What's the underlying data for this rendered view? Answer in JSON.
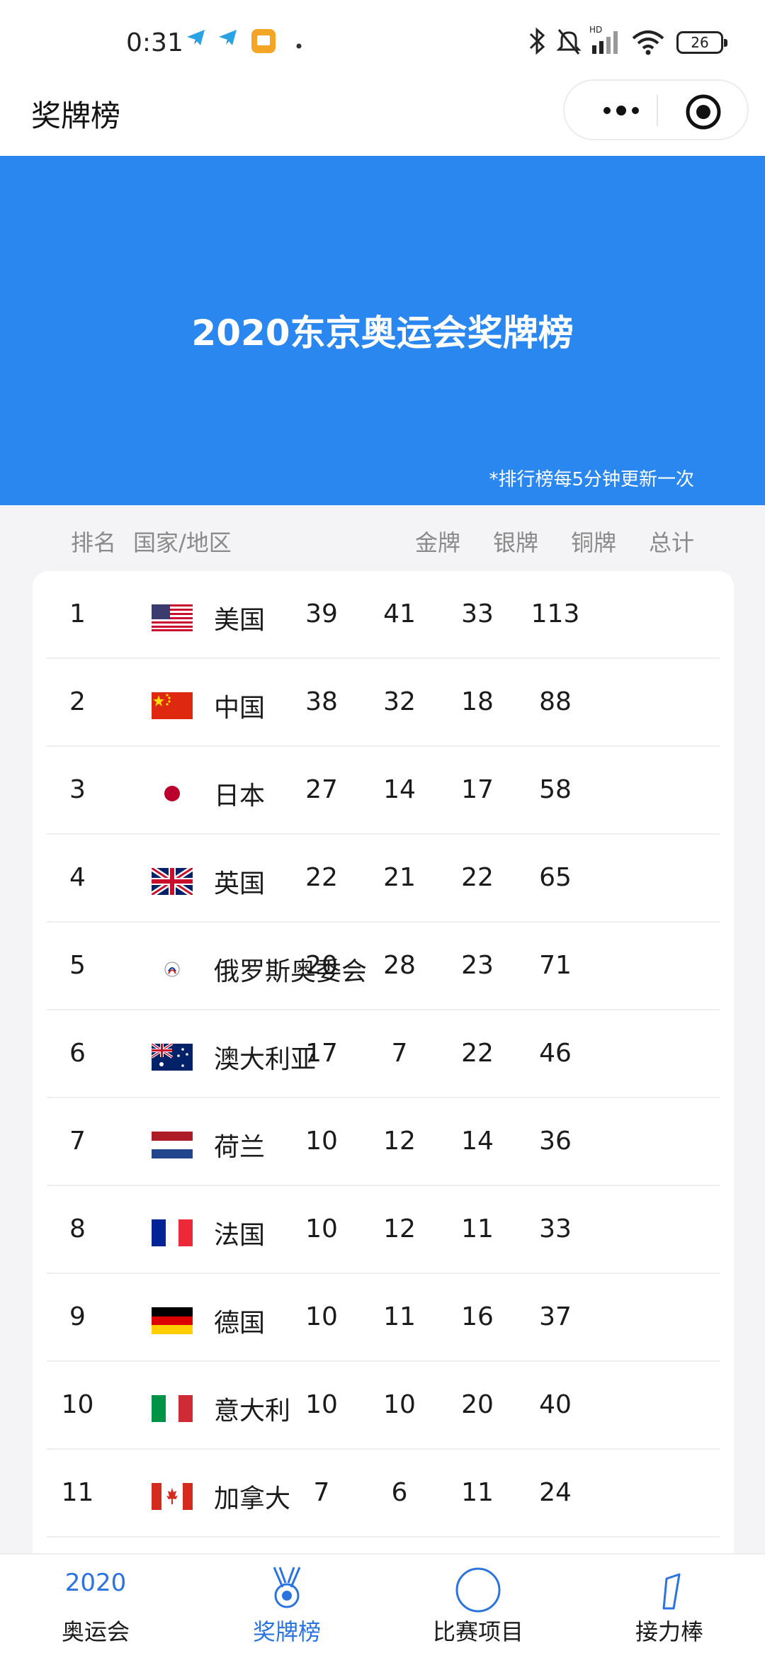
{
  "status_bar": {
    "time": "0:31",
    "battery": "26",
    "icons": [
      "telegram-icon",
      "telegram-icon",
      "message-app-icon",
      "dot-icon",
      "bluetooth-icon",
      "mute-icon",
      "signal-icon",
      "wifi-icon",
      "battery-icon"
    ]
  },
  "nav": {
    "title": "奖牌榜",
    "more_icon": "more-dots-icon",
    "close_icon": "target-close-icon"
  },
  "banner": {
    "title": "2020东京奥运会奖牌榜",
    "note": "*排行榜每5分钟更新一次",
    "color": "#2b87f0"
  },
  "table": {
    "headers": {
      "rank": "排名",
      "country": "国家/地区",
      "gold": "金牌",
      "silver": "银牌",
      "bronze": "铜牌",
      "total": "总计"
    },
    "rows": [
      {
        "rank": "1",
        "country": "美国",
        "flag": "us-flag-icon",
        "gold": "39",
        "silver": "41",
        "bronze": "33",
        "total": "113"
      },
      {
        "rank": "2",
        "country": "中国",
        "flag": "china-flag-icon",
        "gold": "38",
        "silver": "32",
        "bronze": "18",
        "total": "88"
      },
      {
        "rank": "3",
        "country": "日本",
        "flag": "japan-flag-icon",
        "gold": "27",
        "silver": "14",
        "bronze": "17",
        "total": "58"
      },
      {
        "rank": "4",
        "country": "英国",
        "flag": "uk-flag-icon",
        "gold": "22",
        "silver": "21",
        "bronze": "22",
        "total": "65"
      },
      {
        "rank": "5",
        "country": "俄罗斯奥委会",
        "flag": "roc-flag-icon",
        "gold": "20",
        "silver": "28",
        "bronze": "23",
        "total": "71"
      },
      {
        "rank": "6",
        "country": "澳大利亚",
        "flag": "australia-flag-icon",
        "gold": "17",
        "silver": "7",
        "bronze": "22",
        "total": "46"
      },
      {
        "rank": "7",
        "country": "荷兰",
        "flag": "netherlands-flag-icon",
        "gold": "10",
        "silver": "12",
        "bronze": "14",
        "total": "36"
      },
      {
        "rank": "8",
        "country": "法国",
        "flag": "france-flag-icon",
        "gold": "10",
        "silver": "12",
        "bronze": "11",
        "total": "33"
      },
      {
        "rank": "9",
        "country": "德国",
        "flag": "germany-flag-icon",
        "gold": "10",
        "silver": "11",
        "bronze": "16",
        "total": "37"
      },
      {
        "rank": "10",
        "country": "意大利",
        "flag": "italy-flag-icon",
        "gold": "10",
        "silver": "10",
        "bronze": "20",
        "total": "40"
      },
      {
        "rank": "11",
        "country": "加拿大",
        "flag": "canada-flag-icon",
        "gold": "7",
        "silver": "6",
        "bronze": "11",
        "total": "24"
      }
    ]
  },
  "tab_bar": {
    "active_color": "#2b73e0",
    "tabs": [
      {
        "year": "2020",
        "label": "奥运会",
        "icon": "year-2020-icon",
        "active": false
      },
      {
        "label": "奖牌榜",
        "icon": "medal-icon",
        "active": true
      },
      {
        "label": "比赛项目",
        "icon": "circle-icon",
        "active": false
      },
      {
        "label": "接力棒",
        "icon": "baton-icon",
        "active": false
      }
    ]
  }
}
